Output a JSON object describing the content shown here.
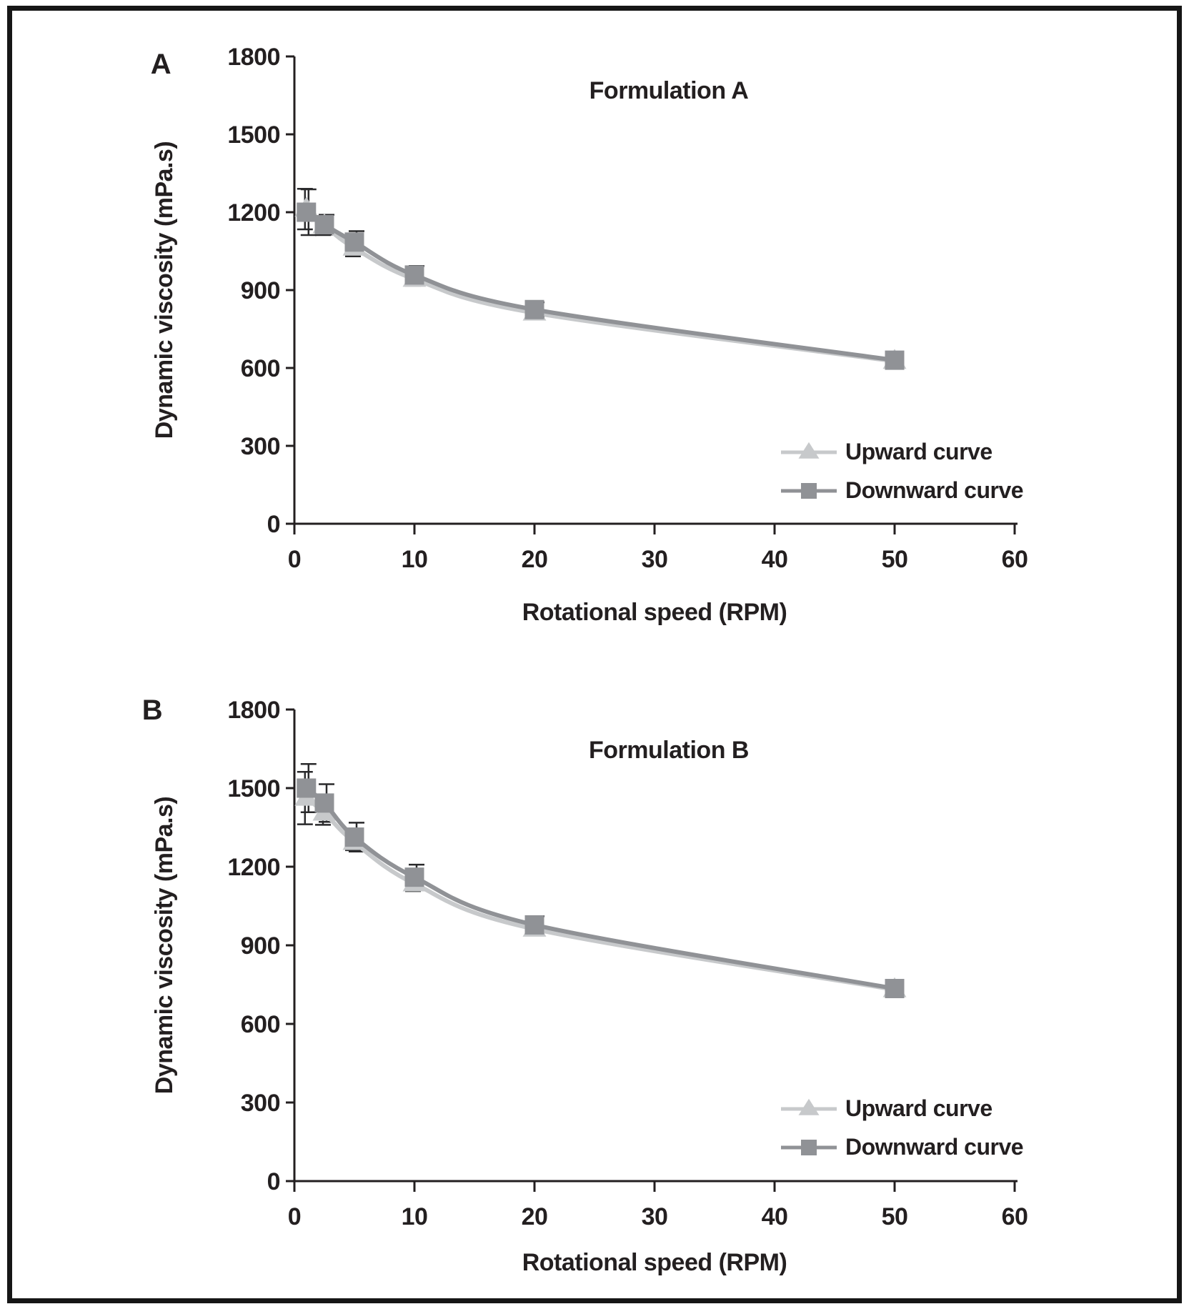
{
  "figure": {
    "background": "#ffffff",
    "border_color": "#161616",
    "text_color": "#231f20",
    "errorbar_color": "#2a2a2c"
  },
  "chart_data": [
    {
      "type": "line",
      "panel_label": "A",
      "title": "Formulation A",
      "xlabel": "Rotational speed (RPM)",
      "ylabel": "Dynamic viscosity (mPa.s)",
      "xlim": [
        0,
        60
      ],
      "ylim": [
        0,
        1800
      ],
      "xticks": [
        0,
        10,
        20,
        30,
        40,
        50,
        60
      ],
      "yticks": [
        0,
        300,
        600,
        900,
        1200,
        1500,
        1800
      ],
      "grid": false,
      "legend_position": "bottom-right",
      "x": [
        1,
        2.5,
        5,
        10,
        20,
        50
      ],
      "series": [
        {
          "name": "Upward curve",
          "marker": "triangle",
          "color": "#c7c9cb",
          "values": [
            1212,
            1148,
            1062,
            942,
            812,
            626
          ],
          "err": [
            78,
            36,
            32,
            25,
            20,
            0
          ]
        },
        {
          "name": "Downward curve",
          "marker": "square",
          "color": "#909296",
          "values": [
            1200,
            1152,
            1085,
            958,
            825,
            630
          ],
          "err": [
            88,
            38,
            42,
            35,
            28,
            0
          ]
        }
      ]
    },
    {
      "type": "line",
      "panel_label": "B",
      "title": "Formulation B",
      "xlabel": "Rotational speed (RPM)",
      "ylabel": "Dynamic viscosity (mPa.s)",
      "xlim": [
        0,
        60
      ],
      "ylim": [
        0,
        1800
      ],
      "xticks": [
        0,
        10,
        20,
        30,
        40,
        50,
        60
      ],
      "yticks": [
        0,
        300,
        600,
        900,
        1200,
        1500,
        1800
      ],
      "grid": false,
      "legend_position": "bottom-right",
      "x": [
        1,
        2.5,
        5,
        10,
        20,
        50
      ],
      "series": [
        {
          "name": "Upward curve",
          "marker": "triangle",
          "color": "#c7c9cb",
          "values": [
            1462,
            1405,
            1293,
            1135,
            962,
            731
          ],
          "err": [
            100,
            45,
            30,
            28,
            20,
            0
          ]
        },
        {
          "name": "Downward curve",
          "marker": "square",
          "color": "#909296",
          "values": [
            1500,
            1443,
            1313,
            1160,
            978,
            735
          ],
          "err": [
            92,
            72,
            55,
            48,
            33,
            0
          ]
        }
      ]
    }
  ]
}
